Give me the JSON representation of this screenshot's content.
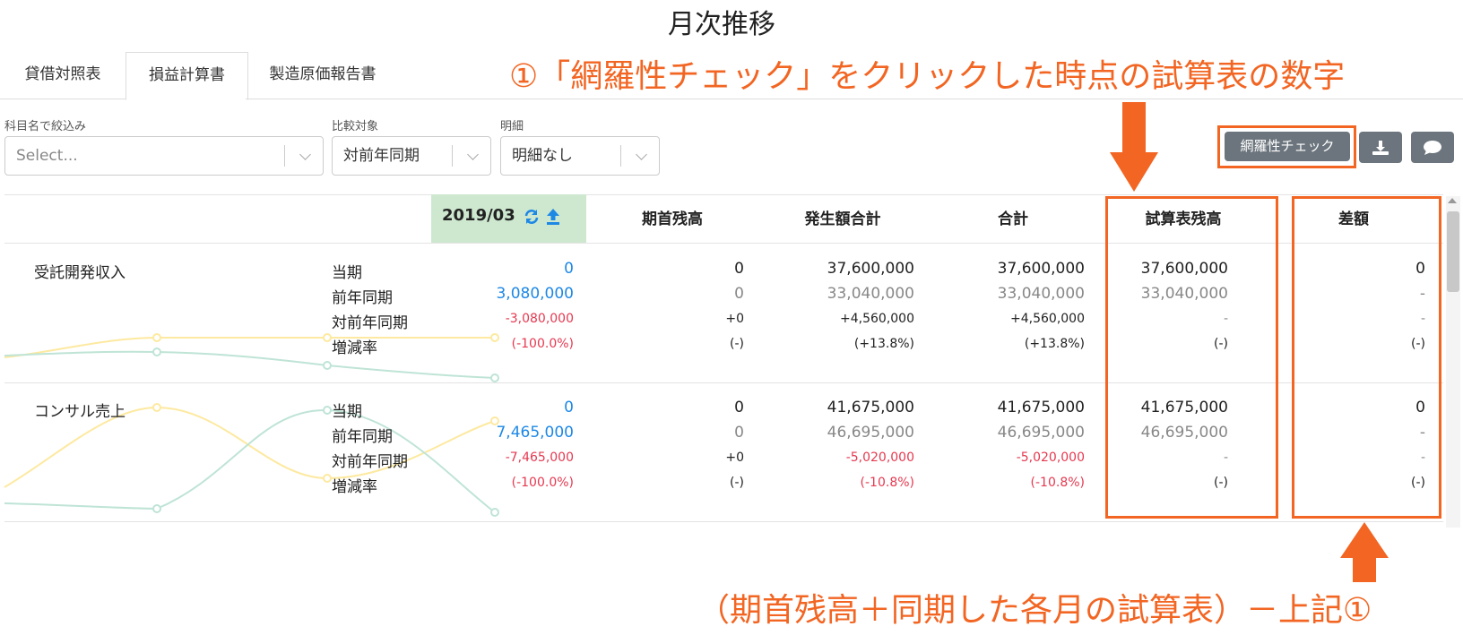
{
  "annotations": {
    "heading": "月次推移",
    "note1": "①「網羅性チェック」をクリックした時点の試算表の数字",
    "note2": "（期首残高＋同期した各月の試算表）－上記①"
  },
  "tabs": [
    "貸借対照表",
    "損益計算書",
    "製造原価報告書"
  ],
  "active_tab": "損益計算書",
  "filters": {
    "subject": {
      "label": "科目名で絞込み",
      "placeholder": "Select..."
    },
    "comparison": {
      "label": "比較対象",
      "value": "対前年同期"
    },
    "detail": {
      "label": "明細",
      "value": "明細なし"
    }
  },
  "toolbar": {
    "check_label": "網羅性チェック",
    "download_icon": "download-icon",
    "comment_icon": "comment-icon"
  },
  "table": {
    "date_column": "2019/03",
    "headers": [
      "期首残高",
      "発生額合計",
      "合計",
      "試算表残高",
      "差額"
    ],
    "row_labels": [
      "当期",
      "前年同期",
      "対前年同期",
      "増減率"
    ],
    "accounts": [
      {
        "name": "受託開発収入",
        "rows": [
          [
            "0",
            "0",
            "37,600,000",
            "37,600,000",
            "37,600,000",
            "0"
          ],
          [
            "3,080,000",
            "0",
            "33,040,000",
            "33,040,000",
            "33,040,000",
            "-"
          ],
          [
            "-3,080,000",
            "+0",
            "+4,560,000",
            "+4,560,000",
            "-",
            "-"
          ],
          [
            "(-100.0%)",
            "(-)",
            "(+13.8%)",
            "(+13.8%)",
            "(-)",
            "(-)"
          ]
        ]
      },
      {
        "name": "コンサル売上",
        "rows": [
          [
            "0",
            "0",
            "41,675,000",
            "41,675,000",
            "41,675,000",
            "0"
          ],
          [
            "7,465,000",
            "0",
            "46,695,000",
            "46,695,000",
            "46,695,000",
            "-"
          ],
          [
            "-7,465,000",
            "+0",
            "-5,020,000",
            "-5,020,000",
            "-",
            "-"
          ],
          [
            "(-100.0%)",
            "(-)",
            "(-10.8%)",
            "(-10.8%)",
            "(-)",
            "(-)"
          ]
        ]
      }
    ]
  },
  "colors": {
    "accent": "#f26522",
    "current_line": "#fde9a0",
    "prior_line": "#bfe4d6",
    "link_blue": "#1e88e5",
    "negative": "#e53950"
  }
}
